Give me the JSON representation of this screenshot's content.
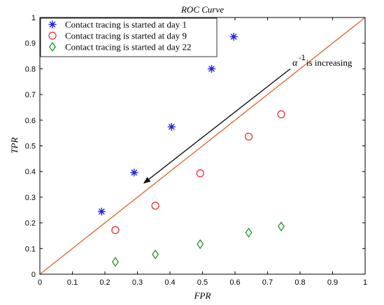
{
  "chart_data": {
    "type": "scatter",
    "title": "ROC Curve",
    "xlabel": "FPR",
    "ylabel": "TPR",
    "xlim": [
      0,
      1
    ],
    "ylim": [
      0,
      1
    ],
    "xticks": [
      "0",
      "0.1",
      "0.2",
      "0.3",
      "0.4",
      "0.5",
      "0.6",
      "0.7",
      "0.8",
      "0.9",
      "1"
    ],
    "yticks": [
      "0",
      "0.1",
      "0.2",
      "0.3",
      "0.4",
      "0.5",
      "0.6",
      "0.7",
      "0.8",
      "0.9",
      "1"
    ],
    "grid": false,
    "legend_position": "top-left",
    "series": [
      {
        "name": "Contact tracing is started at day 1",
        "marker": "asterisk",
        "color": "#1f1fd6",
        "x": [
          0.19,
          0.29,
          0.405,
          0.528,
          0.596
        ],
        "y": [
          0.244,
          0.396,
          0.574,
          0.8,
          0.925
        ]
      },
      {
        "name": "Contact tracing is started at day 9",
        "marker": "circle",
        "color": "#e8222a",
        "x": [
          0.232,
          0.355,
          0.493,
          0.642,
          0.742
        ],
        "y": [
          0.172,
          0.267,
          0.393,
          0.536,
          0.623
        ]
      },
      {
        "name": "Contact tracing is started at day 22",
        "marker": "diamond",
        "color": "#138a13",
        "x": [
          0.232,
          0.355,
          0.493,
          0.642,
          0.742
        ],
        "y": [
          0.048,
          0.077,
          0.117,
          0.162,
          0.186
        ]
      }
    ],
    "reference_line": {
      "x": [
        0,
        1
      ],
      "y": [
        0,
        1
      ],
      "color": "#e0622c"
    },
    "annotation": {
      "symbol": "α",
      "superscript": "-1",
      "text": "is increasing",
      "arrow_from": [
        0.77,
        0.8
      ],
      "arrow_to": [
        0.32,
        0.355
      ]
    }
  }
}
